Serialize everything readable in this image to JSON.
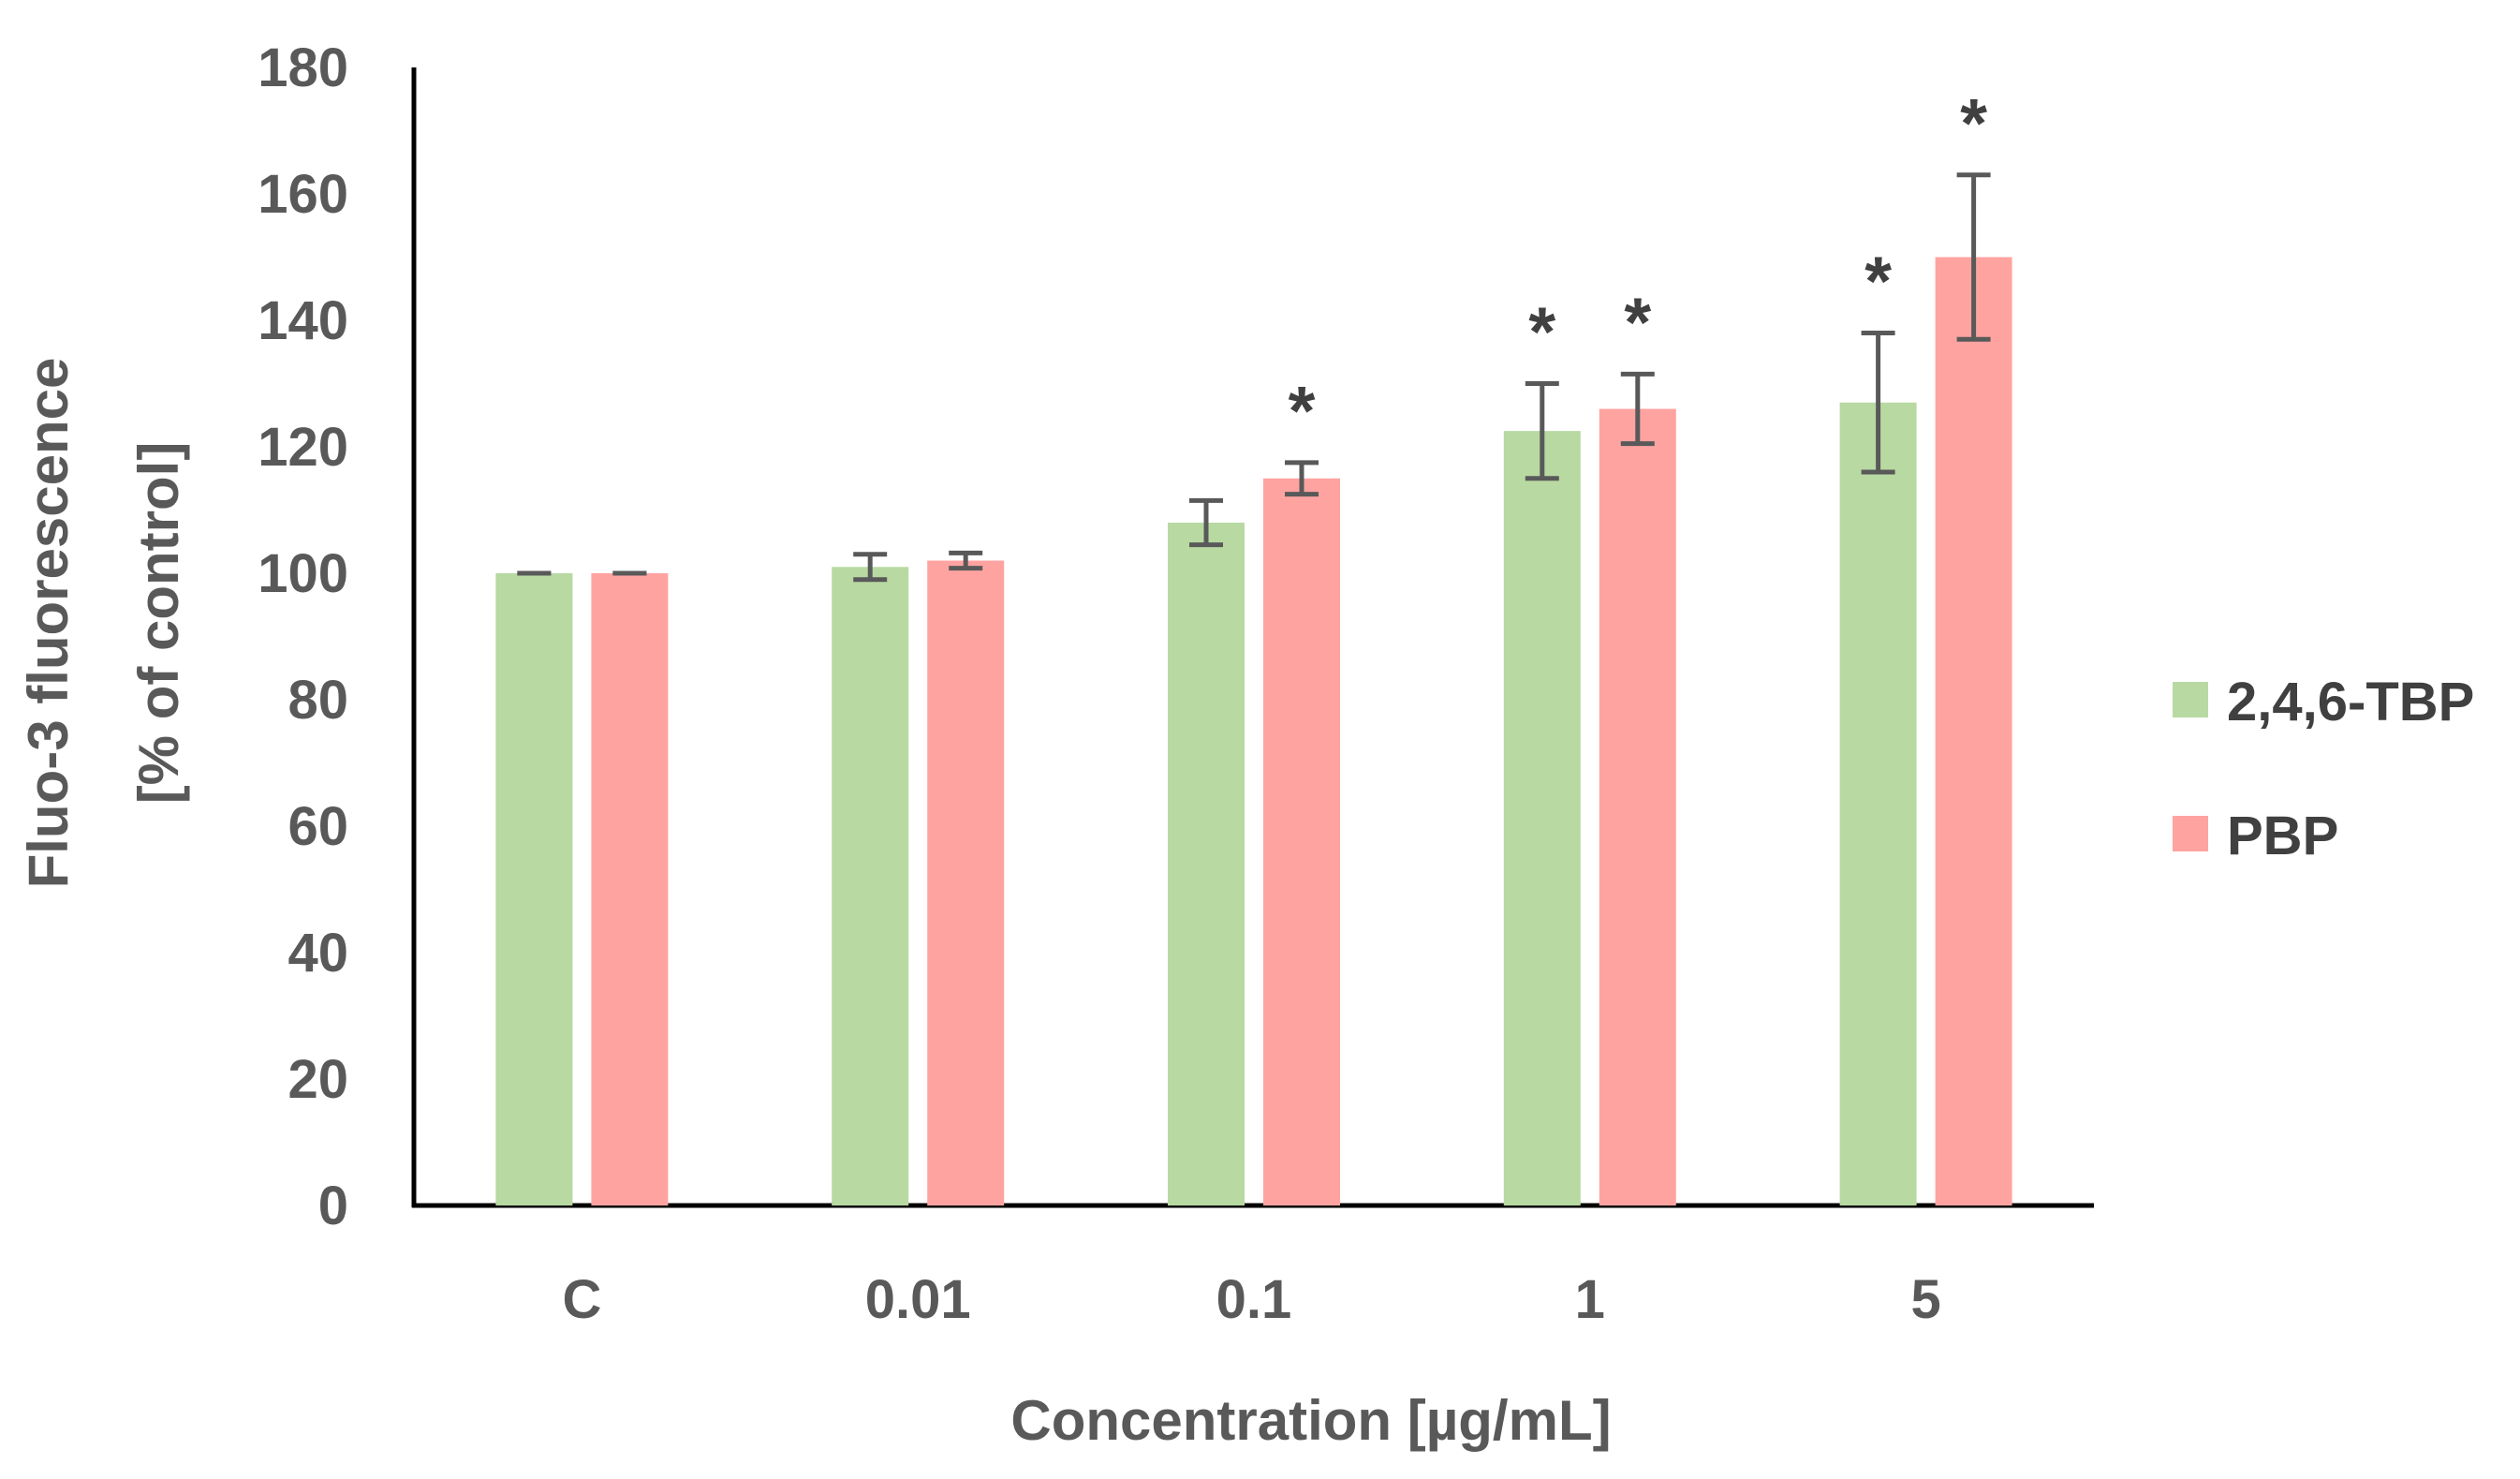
{
  "chart_data": {
    "type": "bar",
    "title": "",
    "xlabel": "Concentration [µg/mL]",
    "ylabel_line1": "Fluo-3 fluorescence",
    "ylabel_line2": "[% of control]",
    "categories": [
      "C",
      "0.01",
      "0.1",
      "1",
      "5"
    ],
    "ylim": [
      0,
      180
    ],
    "yticks": [
      0,
      20,
      40,
      60,
      80,
      100,
      120,
      140,
      160,
      180
    ],
    "ytick_labels": [
      "0",
      "20",
      "40",
      "60",
      "80",
      "100",
      "120",
      "140",
      "160",
      "180"
    ],
    "grid": false,
    "legend_position": "right",
    "series": [
      {
        "name": "2,4,6-TBP",
        "color": "#b8d9a2",
        "values": [
          100,
          101,
          108,
          122.5,
          127
        ],
        "errors": [
          0,
          2,
          3.5,
          7.5,
          11
        ],
        "significant": [
          false,
          false,
          false,
          true,
          true
        ]
      },
      {
        "name": "PBP",
        "color": "#ffa3a1",
        "values": [
          100,
          102,
          115,
          126,
          150
        ],
        "errors": [
          0,
          1.2,
          2.5,
          5.5,
          13
        ],
        "significant": [
          false,
          false,
          true,
          true,
          true
        ]
      }
    ],
    "significance_marker": "*"
  }
}
